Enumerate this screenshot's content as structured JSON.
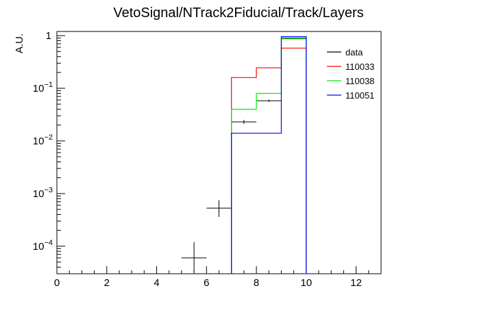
{
  "chart_data": {
    "type": "step-histogram",
    "title": "VetoSignal/NTrack2Fiducial/Track/Layers",
    "xlabel": "",
    "ylabel": "A.U.",
    "xlim": [
      0,
      13
    ],
    "ylim": [
      3e-05,
      1.2
    ],
    "y_scale": "log",
    "x_ticks": [
      0,
      2,
      4,
      6,
      8,
      10,
      12
    ],
    "y_ticks": [
      {
        "value": 1,
        "base": "1",
        "exp": ""
      },
      {
        "value": 0.1,
        "base": "10",
        "exp": "−1"
      },
      {
        "value": 0.01,
        "base": "10",
        "exp": "−2"
      },
      {
        "value": 0.001,
        "base": "10",
        "exp": "−3"
      },
      {
        "value": 0.0001,
        "base": "10",
        "exp": "−4"
      }
    ],
    "legend_position": "top-right",
    "series": [
      {
        "name": "data",
        "kind": "points",
        "color": "#000000",
        "points": [
          {
            "x": 5.5,
            "y": 6e-05,
            "xerr": 0.5,
            "ylo": 3.2e-05,
            "yhi": 0.00012
          },
          {
            "x": 6.5,
            "y": 0.00053,
            "xerr": 0.5,
            "ylo": 0.00036,
            "yhi": 0.00075
          },
          {
            "x": 7.5,
            "y": 0.023,
            "xerr": 0.5,
            "ylo": 0.021,
            "yhi": 0.025
          },
          {
            "x": 8.5,
            "y": 0.058,
            "xerr": 0.5,
            "ylo": 0.055,
            "yhi": 0.061
          },
          {
            "x": 9.5,
            "y": 0.9,
            "xerr": 0.5,
            "ylo": 0.89,
            "yhi": 0.91
          }
        ]
      },
      {
        "name": "110033",
        "kind": "step",
        "color": "#ff0000",
        "edges": [
          7,
          8,
          9,
          10
        ],
        "values": [
          0.16,
          0.245,
          0.58
        ]
      },
      {
        "name": "110038",
        "kind": "step",
        "color": "#00ee00",
        "edges": [
          7,
          8,
          9,
          10
        ],
        "values": [
          0.04,
          0.08,
          0.87
        ]
      },
      {
        "name": "110051",
        "kind": "step",
        "color": "#0000ff",
        "edges": [
          7,
          8,
          9,
          10
        ],
        "values": [
          0.014,
          0.014,
          0.96
        ]
      }
    ]
  }
}
